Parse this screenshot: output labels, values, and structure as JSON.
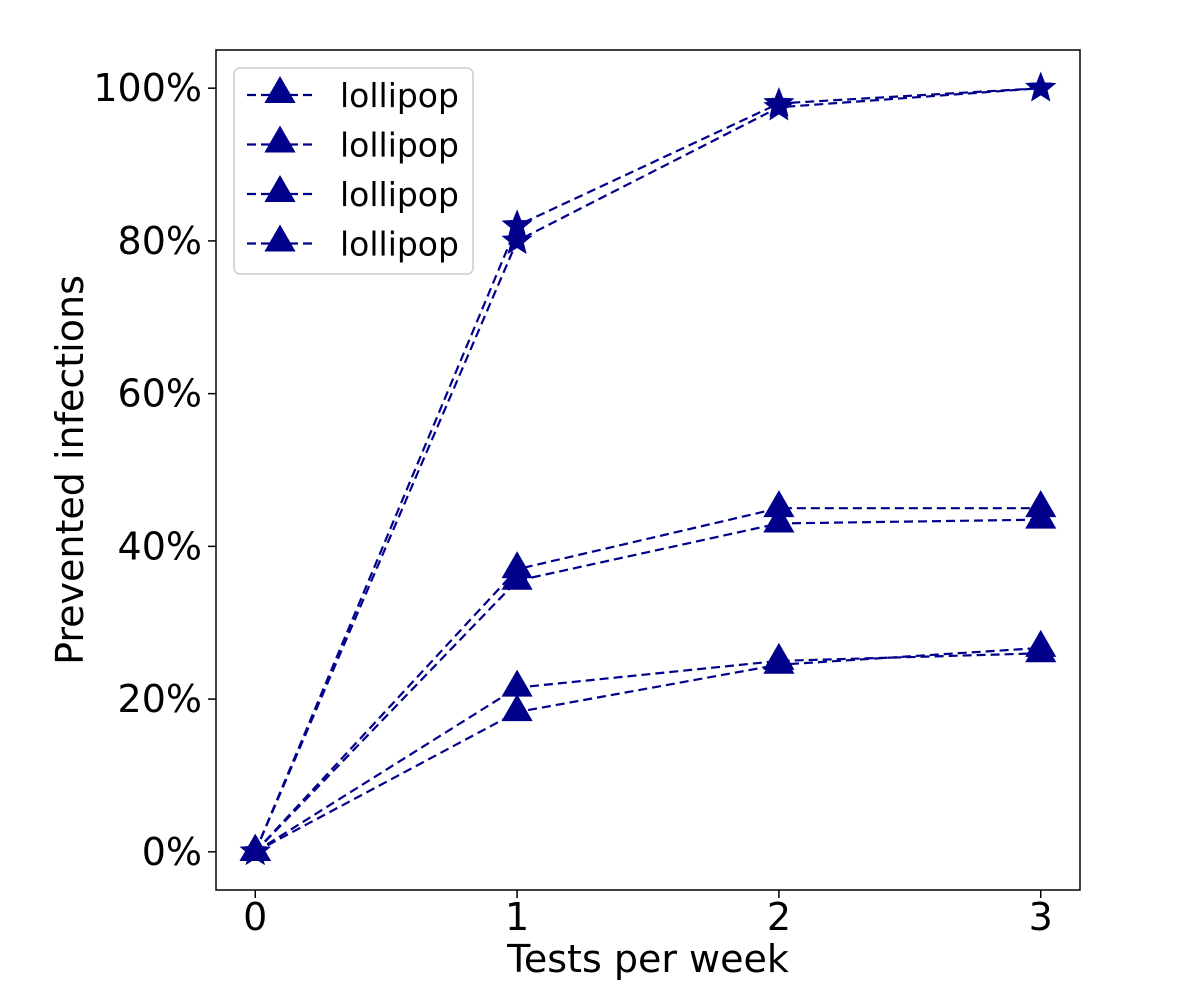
{
  "chart_data": {
    "type": "line",
    "xlabel": "Tests per week",
    "ylabel": "Prevented infections",
    "xlim": [
      -0.15,
      3.15
    ],
    "ylim": [
      -0.05,
      1.05
    ],
    "x_ticks": [
      0,
      1,
      2,
      3
    ],
    "x_tick_labels": [
      "0",
      "1",
      "2",
      "3"
    ],
    "y_ticks": [
      0,
      0.2,
      0.4,
      0.6,
      0.8,
      1.0
    ],
    "y_tick_labels": [
      "0%",
      "20%",
      "40%",
      "60%",
      "80%",
      "100%"
    ],
    "grid": false,
    "legend": {
      "placement": "upper-left",
      "entries": [
        "lollipop",
        "lollipop",
        "lollipop",
        "lollipop"
      ],
      "marker": "triangle"
    },
    "line_style": "dashed",
    "series_color": "#00008b",
    "series": [
      {
        "marker": "star",
        "x": [
          0,
          1,
          2,
          3
        ],
        "values": [
          0.0,
          0.82,
          0.98,
          1.0
        ]
      },
      {
        "marker": "star",
        "x": [
          0,
          1,
          2,
          3
        ],
        "values": [
          0.0,
          0.8,
          0.975,
          1.0
        ]
      },
      {
        "marker": "triangle",
        "x": [
          0,
          1,
          2,
          3
        ],
        "values": [
          0.0,
          0.37,
          0.45,
          0.45
        ]
      },
      {
        "marker": "triangle",
        "x": [
          0,
          1,
          2,
          3
        ],
        "values": [
          0.0,
          0.355,
          0.43,
          0.435
        ]
      },
      {
        "marker": "triangle",
        "x": [
          0,
          1,
          2,
          3
        ],
        "values": [
          0.0,
          0.215,
          0.25,
          0.26
        ]
      },
      {
        "marker": "triangle",
        "x": [
          0,
          1,
          2,
          3
        ],
        "values": [
          0.0,
          0.183,
          0.245,
          0.267
        ]
      }
    ]
  }
}
